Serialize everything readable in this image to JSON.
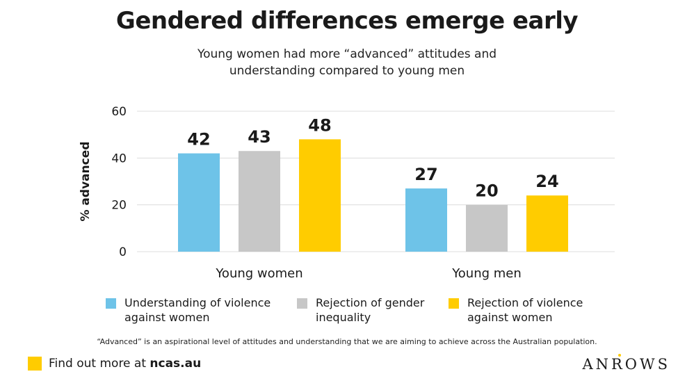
{
  "title": "Gendered differences emerge early",
  "subtitle_line1": "Young women had more “advanced” attitudes and",
  "subtitle_line2": "understanding compared to young men",
  "footnote": "“Advanced” is an aspirational level of attitudes and understanding that we are aiming to achieve across the Australian population.",
  "footer": {
    "prefix": "Find out more at ",
    "link": "ncas.au",
    "accent": "#FFCC00"
  },
  "logo_text": "ANROWS",
  "chart_data": {
    "type": "bar",
    "categories": [
      "Young women",
      "Young men"
    ],
    "series": [
      {
        "name": "Understanding of violence against women",
        "name_lines": [
          "Understanding of violence",
          "against women"
        ],
        "values": [
          42,
          27
        ],
        "color": "#6EC3E8"
      },
      {
        "name": "Rejection of gender inequality",
        "name_lines": [
          "Rejection of gender",
          "inequality"
        ],
        "values": [
          43,
          20
        ],
        "color": "#C7C7C7"
      },
      {
        "name": "Rejection of violence against women",
        "name_lines": [
          "Rejection of violence",
          "against women"
        ],
        "values": [
          48,
          24
        ],
        "color": "#FFCC00"
      }
    ],
    "ylabel": "% advanced",
    "xlabel": "",
    "ylim": [
      0,
      60
    ],
    "yticks": [
      0,
      20,
      40,
      60
    ],
    "grid": true,
    "legend_position": "bottom",
    "data_labels": true
  }
}
